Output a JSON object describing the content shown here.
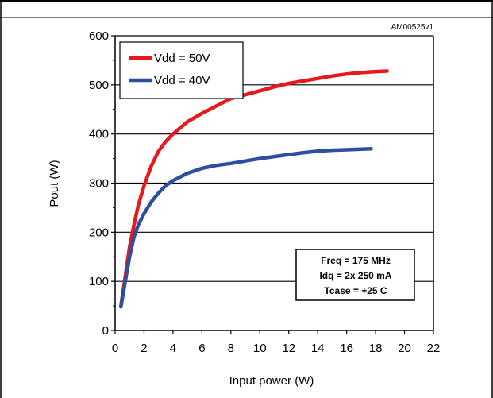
{
  "figure_id": "AM00525v1",
  "chart_data": {
    "type": "line",
    "xlabel": "Input power (W)",
    "ylabel": "Pout (W)",
    "xlim": [
      0,
      22
    ],
    "ylim": [
      0,
      600
    ],
    "x_ticks": [
      0,
      2,
      4,
      6,
      8,
      10,
      12,
      14,
      16,
      18,
      20,
      22
    ],
    "y_ticks": [
      0,
      100,
      200,
      300,
      400,
      500,
      600
    ],
    "grid": "horizontal",
    "legend_position": "top-left",
    "series": [
      {
        "name": "Vdd = 50V",
        "color": "#e8191c",
        "x": [
          0.4,
          0.7,
          1.0,
          1.3,
          1.6,
          2.0,
          2.5,
          3.0,
          3.5,
          4.0,
          5.0,
          6.0,
          7.0,
          8.0,
          9.0,
          10.0,
          11.0,
          12.0,
          13.0,
          14.0,
          15.0,
          16.0,
          17.0,
          18.0,
          18.8
        ],
        "y": [
          50,
          110,
          170,
          215,
          255,
          295,
          335,
          365,
          385,
          400,
          425,
          442,
          457,
          472,
          480,
          488,
          496,
          503,
          508,
          513,
          518,
          522,
          525,
          527,
          528
        ]
      },
      {
        "name": "Vdd = 40V",
        "color": "#2e4fa0",
        "x": [
          0.4,
          0.7,
          1.0,
          1.3,
          1.6,
          2.0,
          2.5,
          3.0,
          3.5,
          4.0,
          5.0,
          6.0,
          7.0,
          8.0,
          9.0,
          10.0,
          11.0,
          12.0,
          13.0,
          14.0,
          15.0,
          16.0,
          17.0,
          17.7
        ],
        "y": [
          48,
          100,
          150,
          190,
          215,
          238,
          262,
          280,
          295,
          305,
          320,
          330,
          336,
          340,
          345,
          350,
          354,
          358,
          362,
          365,
          367,
          368,
          369,
          370
        ]
      }
    ],
    "annotation": [
      "Freq = 175 MHz",
      "Idq = 2x 250 mA",
      "Tcase = +25  C"
    ]
  }
}
